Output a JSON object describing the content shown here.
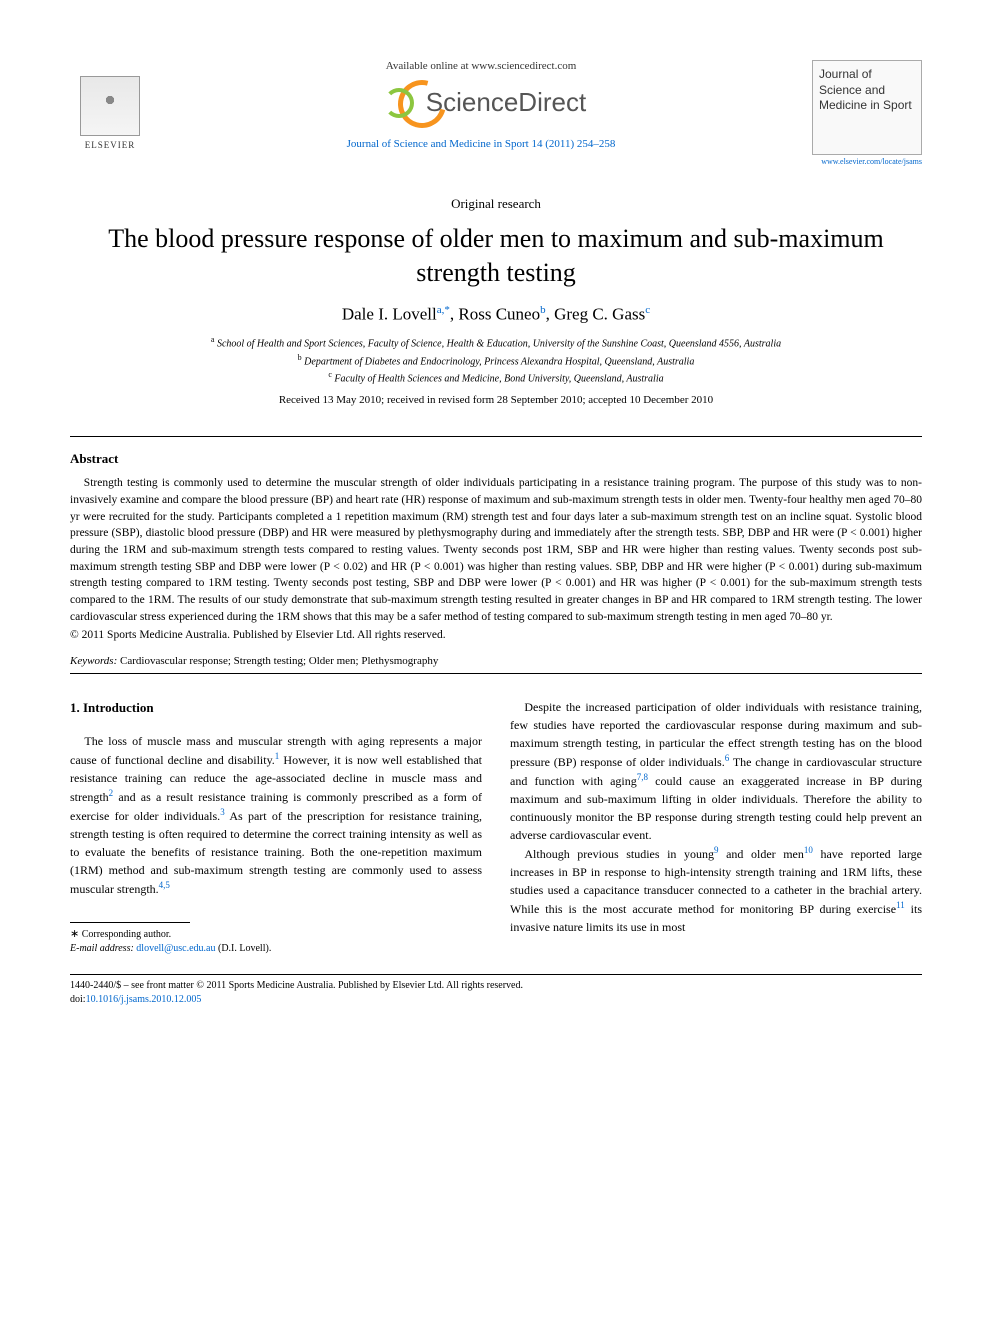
{
  "header": {
    "elsevier_label": "ELSEVIER",
    "available_online": "Available online at www.sciencedirect.com",
    "sciencedirect_label": "ScienceDirect",
    "citation": "Journal of Science and Medicine in Sport 14 (2011) 254–258",
    "journal_cover_text": "Journal of Science and Medicine in Sport",
    "journal_url": "www.elsevier.com/locate/jsams"
  },
  "article": {
    "type": "Original research",
    "title": "The blood pressure response of older men to maximum and sub-maximum strength testing",
    "authors_html": "Dale I. Lovell",
    "author1": "Dale I. Lovell",
    "author1_aff": "a,",
    "author1_star": "*",
    "author2": ", Ross Cuneo",
    "author2_aff": "b",
    "author3": ", Greg C. Gass",
    "author3_aff": "c",
    "aff_a_sup": "a",
    "aff_a": " School of Health and Sport Sciences, Faculty of Science, Health & Education, University of the Sunshine Coast, Queensland 4556, Australia",
    "aff_b_sup": "b",
    "aff_b": " Department of Diabetes and Endocrinology, Princess Alexandra Hospital, Queensland, Australia",
    "aff_c_sup": "c",
    "aff_c": " Faculty of Health Sciences and Medicine, Bond University, Queensland, Australia",
    "dates": "Received 13 May 2010; received in revised form 28 September 2010; accepted 10 December 2010"
  },
  "abstract": {
    "heading": "Abstract",
    "text": "Strength testing is commonly used to determine the muscular strength of older individuals participating in a resistance training program. The purpose of this study was to non-invasively examine and compare the blood pressure (BP) and heart rate (HR) response of maximum and sub-maximum strength tests in older men. Twenty-four healthy men aged 70–80 yr were recruited for the study. Participants completed a 1 repetition maximum (RM) strength test and four days later a sub-maximum strength test on an incline squat. Systolic blood pressure (SBP), diastolic blood pressure (DBP) and HR were measured by plethysmography during and immediately after the strength tests. SBP, DBP and HR were (P < 0.001) higher during the 1RM and sub-maximum strength tests compared to resting values. Twenty seconds post 1RM, SBP and HR were higher than resting values. Twenty seconds post sub-maximum strength testing SBP and DBP were lower (P < 0.02) and HR (P < 0.001) was higher than resting values. SBP, DBP and HR were higher (P < 0.001) during sub-maximum strength testing compared to 1RM testing. Twenty seconds post testing, SBP and DBP were lower (P < 0.001) and HR was higher (P < 0.001) for the sub-maximum strength tests compared to the 1RM. The results of our study demonstrate that sub-maximum strength testing resulted in greater changes in BP and HR compared to 1RM strength testing. The lower cardiovascular stress experienced during the 1RM shows that this may be a safer method of testing compared to sub-maximum strength testing in men aged 70–80 yr.",
    "copyright": "© 2011 Sports Medicine Australia. Published by Elsevier Ltd. All rights reserved.",
    "keywords_label": "Keywords:",
    "keywords": "  Cardiovascular response; Strength testing; Older men; Plethysmography"
  },
  "body": {
    "section1_heading": "1.  Introduction",
    "col1_p1a": "The loss of muscle mass and muscular strength with aging represents a major cause of functional decline and disability.",
    "ref1": "1",
    "col1_p1b": " However, it is now well established that resistance training can reduce the age-associated decline in muscle mass and strength",
    "ref2": "2",
    "col1_p1c": " and as a result resistance training is commonly prescribed as a form of exercise for older individuals.",
    "ref3": "3",
    "col1_p1d": " As part of the prescription for resistance training, strength testing is often required to determine the correct training intensity as well as to evaluate the benefits of resistance training. Both the one-repetition maximum (1RM) method and sub-maximum strength testing are commonly used to assess muscular strength.",
    "ref45": "4,5",
    "col2_p1a": "Despite the increased participation of older individuals with resistance training, few studies have reported the cardiovascular response during maximum and sub-maximum strength testing, in particular the effect strength testing has on the blood pressure (BP) response of older individuals.",
    "ref6": "6",
    "col2_p1b": " The change in cardiovascular structure and function with aging",
    "ref78": "7,8",
    "col2_p1c": " could cause an exaggerated increase in BP during maximum and sub-maximum lifting in older individuals. Therefore the ability to continuously monitor the BP response during strength testing could help prevent an adverse cardiovascular event.",
    "col2_p2a": "Although previous studies in young",
    "ref9": "9",
    "col2_p2b": " and older men",
    "ref10": "10",
    "col2_p2c": " have reported large increases in BP in response to high-intensity strength training and 1RM lifts, these studies used a capacitance transducer connected to a catheter in the brachial artery. While this is the most accurate method for monitoring BP during exercise",
    "ref11": "11",
    "col2_p2d": " its invasive nature limits its use in most"
  },
  "footnote": {
    "corresponding": "Corresponding author.",
    "email_label": "E-mail address:",
    "email": "dlovell@usc.edu.au",
    "email_name": " (D.I. Lovell)."
  },
  "footer": {
    "issn_line": "1440-2440/$ – see front matter © 2011 Sports Medicine Australia. Published by Elsevier Ltd. All rights reserved.",
    "doi_label": "doi:",
    "doi": "10.1016/j.jsams.2010.12.005"
  },
  "colors": {
    "link": "#0066cc",
    "orange": "#f7941e",
    "green": "#8cc63f",
    "text": "#000000",
    "background": "#ffffff"
  }
}
